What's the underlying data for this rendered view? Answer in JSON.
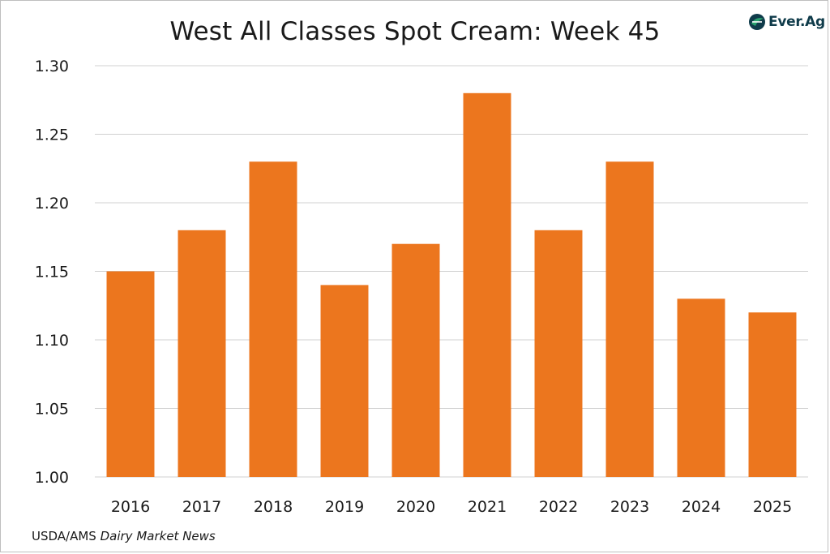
{
  "brand": {
    "name": "Ever.Ag",
    "logo_icon": "ever-ag-leaf-icon",
    "logo_color": "#0f3b4a",
    "logo_accent": "#2aa26f"
  },
  "source": {
    "prefix": "USDA/AMS",
    "publication": "Dairy Market News"
  },
  "colors": {
    "bar": "#ec761e",
    "grid": "#d0d0d0",
    "text": "#1a1a1a"
  },
  "chart_data": {
    "type": "bar",
    "title": "West All Classes Spot Cream: Week 45",
    "xlabel": "",
    "ylabel": "",
    "categories": [
      "2016",
      "2017",
      "2018",
      "2019",
      "2020",
      "2021",
      "2022",
      "2023",
      "2024",
      "2025"
    ],
    "values": [
      1.15,
      1.18,
      1.23,
      1.14,
      1.17,
      1.28,
      1.18,
      1.23,
      1.13,
      1.12
    ],
    "ylim": [
      1.0,
      1.3
    ],
    "yticks": [
      "1.00",
      "1.05",
      "1.10",
      "1.15",
      "1.20",
      "1.25",
      "1.30"
    ],
    "grid": true,
    "legend": "none"
  }
}
